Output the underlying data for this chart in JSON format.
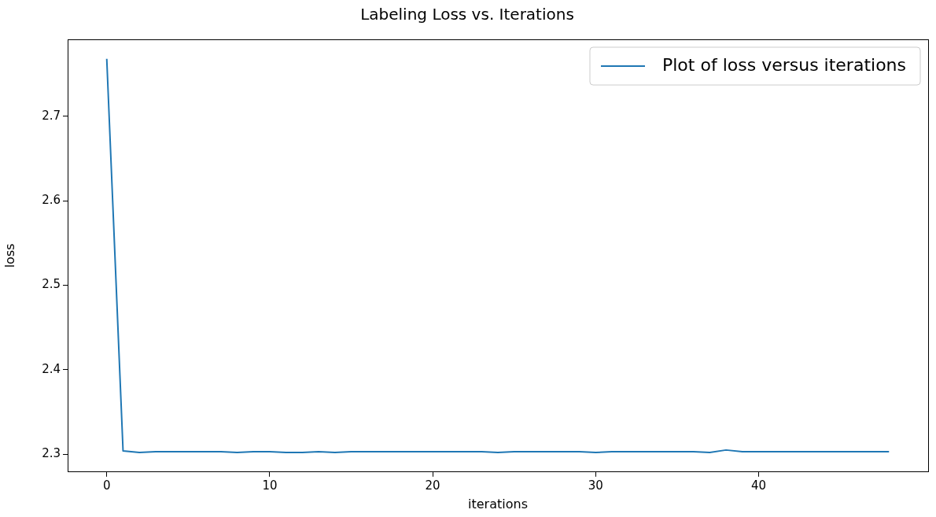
{
  "chart_data": {
    "type": "line",
    "title": "Labeling Loss vs. Iterations",
    "xlabel": "iterations",
    "ylabel": "loss",
    "x": [
      0,
      1,
      2,
      3,
      4,
      5,
      6,
      7,
      8,
      9,
      10,
      11,
      12,
      13,
      14,
      15,
      16,
      17,
      18,
      19,
      20,
      21,
      22,
      23,
      24,
      25,
      26,
      27,
      28,
      29,
      30,
      31,
      32,
      33,
      34,
      35,
      36,
      37,
      38,
      39,
      40,
      41,
      42,
      43,
      44,
      45,
      46,
      47,
      48
    ],
    "series": [
      {
        "name": "Plot of loss versus iterations",
        "color": "#1f77b4",
        "values": [
          2.768,
          2.304,
          2.302,
          2.303,
          2.303,
          2.303,
          2.303,
          2.303,
          2.302,
          2.303,
          2.303,
          2.302,
          2.302,
          2.303,
          2.302,
          2.303,
          2.303,
          2.303,
          2.303,
          2.303,
          2.303,
          2.303,
          2.303,
          2.303,
          2.302,
          2.303,
          2.303,
          2.303,
          2.303,
          2.303,
          2.302,
          2.303,
          2.303,
          2.303,
          2.303,
          2.303,
          2.303,
          2.302,
          2.305,
          2.303,
          2.303,
          2.303,
          2.303,
          2.303,
          2.303,
          2.303,
          2.303,
          2.303,
          2.303
        ]
      }
    ],
    "xlim": [
      -2.4,
      50.4
    ],
    "ylim": [
      2.279,
      2.791
    ],
    "xticks": [
      0,
      10,
      20,
      30,
      40
    ],
    "yticks": [
      2.3,
      2.4,
      2.5,
      2.6,
      2.7
    ],
    "grid": false,
    "legend": "top right",
    "marker": "none",
    "line_style": "solid"
  }
}
